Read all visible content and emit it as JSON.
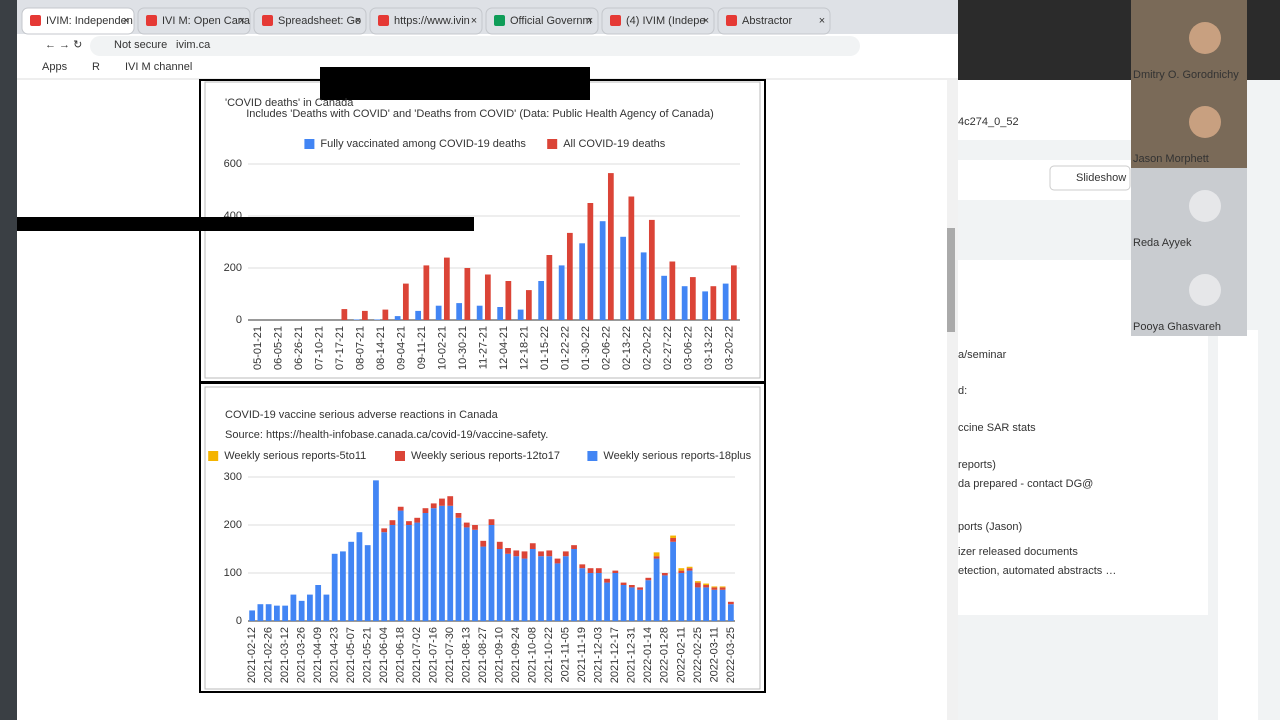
{
  "ui": {
    "tabs": [
      "IVIM: Independen",
      "IVI M: Open Cana",
      "Spreadsheet: Go",
      "https://www.ivin",
      "Official Governm",
      "(4) IVIM (Indepe",
      "Abstractor"
    ],
    "security": "Not secure",
    "url": "ivim.ca",
    "bookmarks": [
      "Apps",
      "R",
      "IVI M channel"
    ],
    "slides": {
      "doc_id": "4c274_0_52",
      "slideshow": "Slideshow",
      "lines": [
        "a/seminar",
        "d:",
        "ccine SAR stats",
        "reports)",
        "da prepared  - contact DG@",
        "ports (Jason)",
        "izer released documents",
        "etection, automated abstracts …"
      ]
    },
    "participants": [
      "Dmitry O. Gorodnichy",
      "Jason Morphett",
      "Reda Ayyek",
      "Pooya Ghasvareh"
    ]
  },
  "chart_data": [
    {
      "type": "bar",
      "stacked": false,
      "title": "'COVID deaths' in Canada",
      "subtitle": "Includes 'Deaths with COVID' and 'Deaths from COVID' (Data: Public Health Agency of Canada)",
      "categories": [
        "05-01-21",
        "06-05-21",
        "06-26-21",
        "07-10-21",
        "07-17-21",
        "08-07-21",
        "08-14-21",
        "09-04-21",
        "09-11-21",
        "10-02-21",
        "10-30-21",
        "11-27-21",
        "12-04-21",
        "12-18-21",
        "01-15-22",
        "01-22-22",
        "01-30-22",
        "02-06-22",
        "02-13-22",
        "02-20-22",
        "02-27-22",
        "03-06-22",
        "03-13-22",
        "03-20-22"
      ],
      "series": [
        {
          "name": "Fully vaccinated among COVID-19 deaths",
          "color": "#4285f4",
          "values": [
            0,
            0,
            0,
            0,
            0,
            2,
            2,
            15,
            35,
            55,
            65,
            55,
            50,
            40,
            150,
            210,
            295,
            380,
            320,
            260,
            170,
            130,
            110,
            140
          ]
        },
        {
          "name": "All COVID-19 deaths",
          "color": "#db4437",
          "values": [
            0,
            0,
            0,
            0,
            42,
            35,
            40,
            140,
            210,
            240,
            200,
            175,
            150,
            115,
            250,
            335,
            450,
            565,
            475,
            385,
            225,
            165,
            130,
            210
          ]
        }
      ],
      "ylim": [
        0,
        600
      ],
      "yticks": [
        0,
        200,
        400,
        600
      ],
      "grid": true
    },
    {
      "type": "bar",
      "stacked": true,
      "title": "COVID-19 vaccine serious adverse reactions in Canada",
      "subtitle": "Source: https://health-infobase.canada.ca/covid-19/vaccine-safety.",
      "categories": [
        "2021-02-12",
        null,
        "2021-02-26",
        null,
        "2021-03-12",
        null,
        "2021-03-26",
        null,
        "2021-04-09",
        null,
        "2021-04-23",
        null,
        "2021-05-07",
        null,
        "2021-05-21",
        null,
        "2021-06-04",
        null,
        "2021-06-18",
        null,
        "2021-07-02",
        null,
        "2021-07-16",
        null,
        "2021-07-30",
        null,
        "2021-08-13",
        null,
        "2021-08-27",
        null,
        "2021-09-10",
        null,
        "2021-09-24",
        null,
        "2021-10-08",
        null,
        "2021-10-22",
        null,
        "2021-11-05",
        null,
        "2021-11-19",
        null,
        "2021-12-03",
        null,
        "2021-12-17",
        null,
        "2021-12-31",
        null,
        "2022-01-14",
        null,
        "2022-01-28",
        null,
        "2022-02-11",
        null,
        "2022-02-25",
        null,
        "2022-03-11",
        null,
        "2022-03-25"
      ],
      "series": [
        {
          "name": "Weekly serious reports-5to11",
          "color": "#f4b400",
          "values": [
            0,
            0,
            0,
            0,
            0,
            0,
            0,
            0,
            0,
            0,
            0,
            0,
            0,
            0,
            0,
            0,
            0,
            0,
            0,
            0,
            0,
            0,
            0,
            0,
            0,
            0,
            0,
            0,
            0,
            0,
            0,
            0,
            0,
            0,
            0,
            0,
            0,
            0,
            0,
            0,
            0,
            0,
            0,
            0,
            0,
            0,
            0,
            0,
            0,
            8,
            0,
            5,
            5,
            3,
            3,
            3,
            2,
            2,
            0
          ]
        },
        {
          "name": "Weekly serious reports-12to17",
          "color": "#db4437",
          "values": [
            0,
            0,
            0,
            0,
            0,
            0,
            0,
            0,
            0,
            0,
            0,
            0,
            0,
            0,
            0,
            0,
            8,
            10,
            8,
            8,
            10,
            10,
            10,
            15,
            20,
            10,
            10,
            10,
            12,
            12,
            15,
            12,
            12,
            15,
            12,
            10,
            12,
            10,
            10,
            8,
            8,
            10,
            10,
            8,
            5,
            5,
            5,
            5,
            5,
            5,
            5,
            8,
            5,
            5,
            10,
            5,
            5,
            5,
            5
          ]
        },
        {
          "name": "Weekly serious reports-18plus",
          "color": "#4285f4",
          "values": [
            22,
            35,
            35,
            32,
            32,
            55,
            42,
            55,
            75,
            55,
            140,
            145,
            165,
            185,
            158,
            293,
            185,
            200,
            230,
            200,
            205,
            225,
            235,
            240,
            240,
            215,
            195,
            190,
            155,
            200,
            150,
            140,
            135,
            130,
            150,
            135,
            135,
            120,
            135,
            150,
            110,
            100,
            100,
            80,
            100,
            75,
            70,
            65,
            85,
            130,
            95,
            165,
            100,
            105,
            70,
            70,
            65,
            65,
            35
          ]
        }
      ],
      "ylim": [
        0,
        300
      ],
      "yticks": [
        0,
        100,
        200,
        300
      ],
      "grid": true
    }
  ]
}
